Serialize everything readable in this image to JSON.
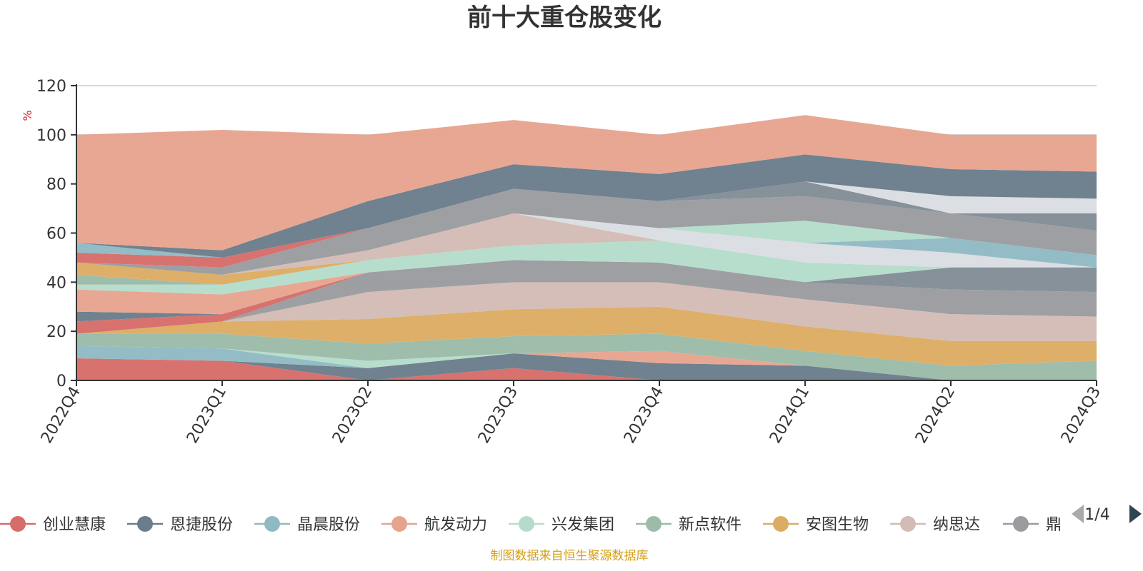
{
  "title": "前十大重仓股变化",
  "source_note": "制图数据来自恒生聚源数据库",
  "legend_page": "1/4",
  "chart_data": {
    "type": "area",
    "stacked": true,
    "title": "前十大重仓股变化",
    "ylabel": "%",
    "ylim": [
      0,
      120
    ],
    "yticks": [
      0,
      20,
      40,
      60,
      80,
      100,
      120
    ],
    "grid": true,
    "legend_position": "bottom",
    "categories": [
      "2022Q4",
      "2023Q1",
      "2023Q2",
      "2023Q3",
      "2023Q4",
      "2024Q1",
      "2024Q2",
      "2024Q3"
    ],
    "series": [
      {
        "name": "创业慧康",
        "color": "#d66d6a",
        "values": [
          9,
          8,
          0,
          5,
          0,
          0,
          0,
          0
        ]
      },
      {
        "name": "恩捷股份",
        "color": "#6b7d8b",
        "values": [
          0,
          0,
          5,
          6,
          7,
          6,
          0,
          0
        ]
      },
      {
        "name": "晶晨股份",
        "color": "#8fbac4",
        "values": [
          5,
          5,
          0,
          0,
          0,
          0,
          0,
          0
        ]
      },
      {
        "name": "航发动力",
        "color": "#e6a48f",
        "values": [
          0,
          0,
          0,
          0,
          5,
          0,
          0,
          0
        ]
      },
      {
        "name": "兴发集团",
        "color": "#b5dccb",
        "values": [
          0,
          0,
          3,
          0,
          0,
          0,
          0,
          0
        ]
      },
      {
        "name": "新点软件",
        "color": "#9cbba8",
        "values": [
          5,
          6,
          7,
          7,
          7,
          6,
          6,
          8
        ]
      },
      {
        "name": "安图生物",
        "color": "#dcac63",
        "values": [
          0,
          5,
          10,
          11,
          11,
          10,
          10,
          8
        ]
      },
      {
        "name": "纳思达",
        "color": "#d3bcb5",
        "values": [
          0,
          0,
          11,
          11,
          10,
          11,
          11,
          10
        ]
      },
      {
        "name": "鼎",
        "color": "#9a9ca0",
        "values": [
          0,
          0,
          8,
          9,
          8,
          7,
          10,
          10
        ]
      },
      {
        "name": "",
        "color": "#828d97",
        "values": [
          0,
          0,
          0,
          0,
          0,
          0,
          9,
          10
        ]
      },
      {
        "name": "",
        "color": "#d66d6a",
        "values": [
          5,
          3,
          0,
          0,
          0,
          0,
          0,
          0
        ]
      },
      {
        "name": "",
        "color": "#6b7d8b",
        "values": [
          4,
          0,
          0,
          0,
          0,
          0,
          0,
          0
        ]
      },
      {
        "name": "",
        "color": "#e6a48f",
        "values": [
          9,
          8,
          0,
          0,
          0,
          0,
          0,
          0
        ]
      },
      {
        "name": "",
        "color": "#b5dccb",
        "values": [
          2,
          4,
          5,
          6,
          9,
          8,
          0,
          0
        ]
      },
      {
        "name": "",
        "color": "#9cbba8",
        "values": [
          4,
          0,
          0,
          0,
          0,
          0,
          0,
          0
        ]
      },
      {
        "name": "",
        "color": "#dcac63",
        "values": [
          5,
          4,
          0,
          0,
          0,
          0,
          0,
          0
        ]
      },
      {
        "name": "",
        "color": "#d3bcb5",
        "values": [
          0,
          0,
          4,
          13,
          0,
          0,
          0,
          0
        ]
      },
      {
        "name": "",
        "color": "#dadde2",
        "values": [
          0,
          0,
          0,
          0,
          5,
          8,
          6,
          0
        ]
      },
      {
        "name": "",
        "color": "#8fbac4",
        "values": [
          0,
          0,
          0,
          0,
          0,
          0,
          6,
          5
        ]
      },
      {
        "name": "",
        "color": "#b5dccb",
        "values": [
          0,
          0,
          0,
          0,
          0,
          9,
          0,
          0
        ]
      },
      {
        "name": "",
        "color": "#9a9ca0",
        "values": [
          0,
          3,
          9,
          10,
          11,
          10,
          10,
          10
        ]
      },
      {
        "name": "",
        "color": "#828d97",
        "values": [
          0,
          0,
          0,
          0,
          0,
          6,
          0,
          7
        ]
      },
      {
        "name": "",
        "color": "#dadde2",
        "values": [
          0,
          0,
          0,
          0,
          0,
          0,
          7,
          6
        ]
      },
      {
        "name": "",
        "color": "#d66d6a",
        "values": [
          4,
          4,
          0,
          0,
          0,
          0,
          0,
          0
        ]
      },
      {
        "name": "",
        "color": "#8fbac4",
        "values": [
          4,
          0,
          0,
          0,
          0,
          0,
          0,
          0
        ]
      },
      {
        "name": "",
        "color": "#6b7d8b",
        "values": [
          0,
          3,
          11,
          10,
          11,
          11,
          11,
          11
        ]
      },
      {
        "name": "",
        "color": "#e6a48f",
        "values": [
          44,
          49,
          27,
          18,
          16,
          16,
          14,
          15
        ]
      }
    ]
  }
}
